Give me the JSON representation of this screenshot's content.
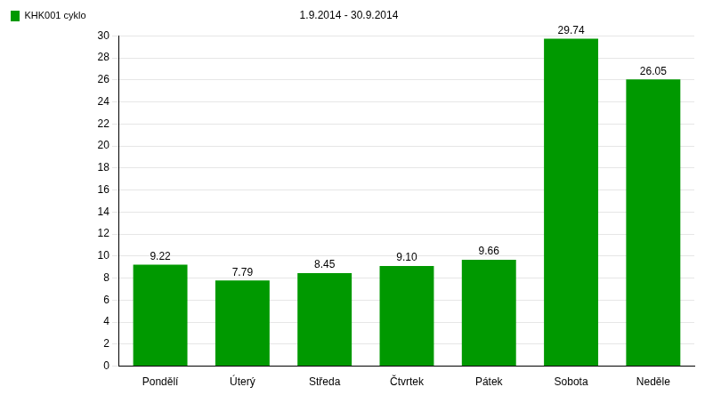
{
  "chart_data": {
    "type": "bar",
    "title": "1.9.2014 - 30.9.2014",
    "categories": [
      "Pondělí",
      "Úterý",
      "Středa",
      "Čtvrtek",
      "Pátek",
      "Sobota",
      "Neděle"
    ],
    "series": [
      {
        "name": "KHK001 cyklo",
        "color": "#009900",
        "values": [
          9.22,
          7.79,
          8.45,
          9.1,
          9.66,
          29.74,
          26.05
        ],
        "value_labels": [
          "9.22",
          "7.79",
          "8.45",
          "9.10",
          "9.66",
          "29.74",
          "26.05"
        ]
      }
    ],
    "ylim": [
      0,
      30
    ],
    "yticks": [
      0,
      2,
      4,
      6,
      8,
      10,
      12,
      14,
      16,
      18,
      20,
      22,
      24,
      26,
      28,
      30
    ],
    "grid": true,
    "legend": "top-left",
    "data_labels": true
  }
}
